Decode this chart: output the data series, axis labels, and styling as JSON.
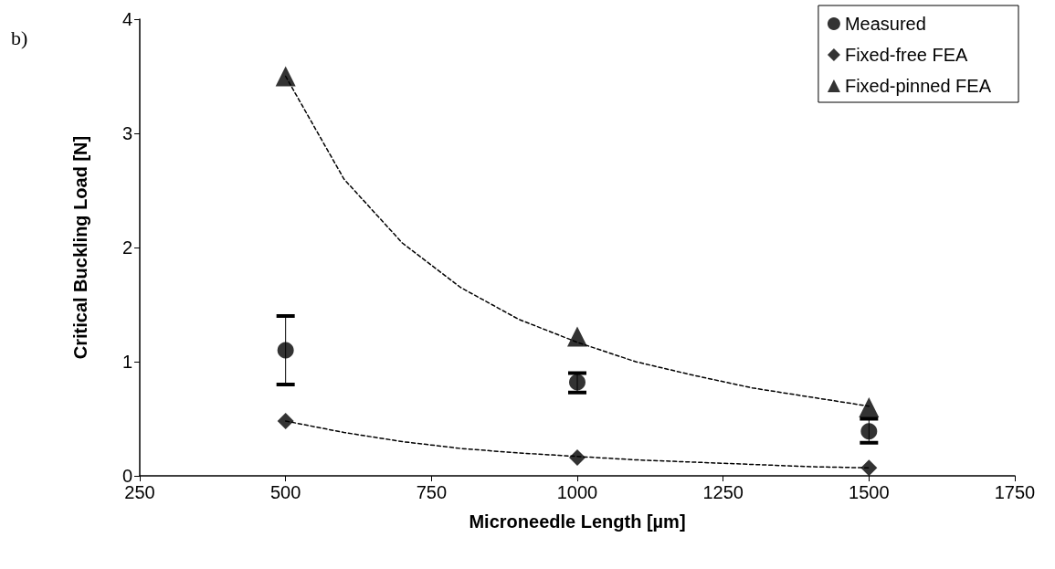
{
  "chart_data": {
    "type": "scatter",
    "xlabel": "Microneedle Length [µm]",
    "ylabel": "Critical Buckling Load [N]",
    "annotations": [
      "b)"
    ],
    "xlim": [
      250,
      1750
    ],
    "xticks": [
      250,
      500,
      750,
      1000,
      1250,
      1500,
      1750
    ],
    "ylim": [
      0,
      4
    ],
    "yticks": [
      0,
      1,
      2,
      3,
      4
    ],
    "grid": false,
    "legend": "top right",
    "series": [
      {
        "name": "Measured",
        "marker": "circle",
        "color": "#000000",
        "x": [
          500,
          1000,
          1500
        ],
        "values": [
          1.1,
          0.82,
          0.39
        ],
        "errors": [
          [
            0.8,
            1.4
          ],
          [
            0.73,
            0.9
          ],
          [
            0.29,
            0.5
          ]
        ]
      },
      {
        "name": "Fixed-free FEA",
        "marker": "diamond",
        "color": "#000000",
        "x": [
          500,
          1000,
          1500
        ],
        "values": [
          0.48,
          0.16,
          0.07
        ]
      },
      {
        "name": "Fixed-pinned FEA",
        "marker": "triangle",
        "color": "#000000",
        "x": [
          500,
          1000,
          1500
        ],
        "values": [
          3.5,
          1.22,
          0.6
        ]
      },
      {
        "type": "line",
        "marker": "none",
        "line_style": "dashed",
        "color": "#000000",
        "x": [
          500,
          600,
          700,
          800,
          900,
          1000,
          1100,
          1200,
          1300,
          1400,
          1500
        ],
        "values": [
          3.5,
          2.6,
          2.04,
          1.65,
          1.37,
          1.17,
          1.0,
          0.88,
          0.77,
          0.69,
          0.61
        ]
      },
      {
        "type": "line",
        "marker": "none",
        "line_style": "dashed",
        "color": "#000000",
        "x": [
          500,
          600,
          700,
          800,
          900,
          1000,
          1100,
          1200,
          1300,
          1400,
          1500
        ],
        "values": [
          0.48,
          0.38,
          0.3,
          0.24,
          0.2,
          0.17,
          0.14,
          0.12,
          0.1,
          0.08,
          0.07
        ]
      }
    ]
  }
}
